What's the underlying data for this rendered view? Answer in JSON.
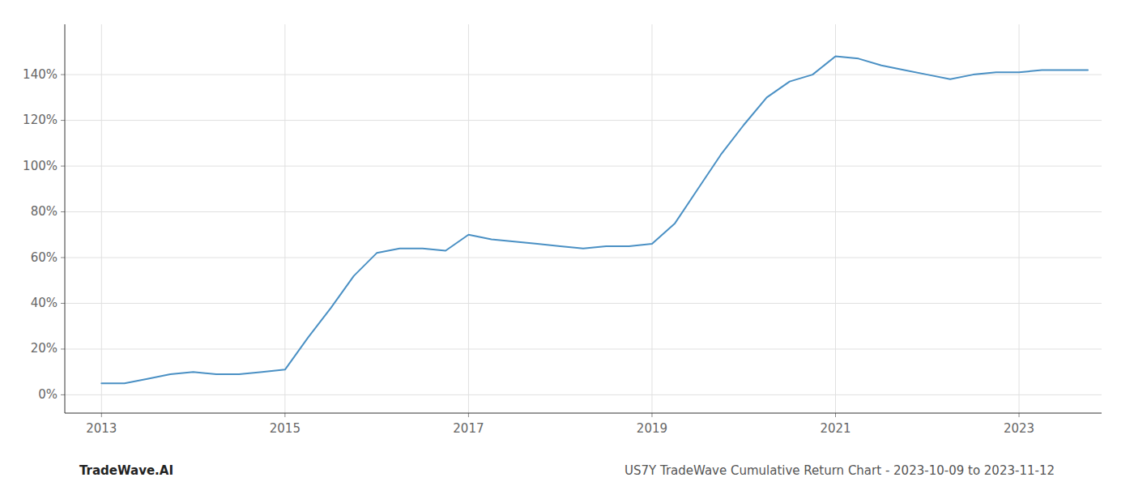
{
  "chart_data": {
    "type": "line",
    "annotations": [
      "TradeWave.AI",
      "US7Y TradeWave Cumulative Return Chart - 2023-10-09 to 2023-11-12"
    ],
    "x": [
      2013.0,
      2013.25,
      2013.5,
      2013.75,
      2014.0,
      2014.25,
      2014.5,
      2014.75,
      2015.0,
      2015.25,
      2015.5,
      2015.75,
      2016.0,
      2016.25,
      2016.5,
      2016.75,
      2017.0,
      2017.25,
      2017.5,
      2017.75,
      2018.0,
      2018.25,
      2018.5,
      2018.75,
      2019.0,
      2019.25,
      2019.5,
      2019.75,
      2020.0,
      2020.25,
      2020.5,
      2020.75,
      2021.0,
      2021.25,
      2021.5,
      2021.75,
      2022.0,
      2022.25,
      2022.5,
      2022.75,
      2023.0,
      2023.25,
      2023.5,
      2023.75
    ],
    "values": [
      5,
      5,
      7,
      9,
      10,
      9,
      9,
      10,
      11,
      25,
      38,
      52,
      62,
      64,
      64,
      63,
      70,
      68,
      67,
      66,
      65,
      64,
      65,
      65,
      66,
      75,
      90,
      105,
      118,
      130,
      137,
      140,
      148,
      147,
      144,
      142,
      140,
      138,
      140,
      141,
      141,
      142,
      142,
      142
    ],
    "color": "#4a90c4",
    "xlim": [
      2012.6,
      2023.9
    ],
    "ylim": [
      -8,
      162
    ],
    "xticks": [
      2013,
      2015,
      2017,
      2019,
      2021,
      2023
    ],
    "yticks": [
      {
        "value": 0,
        "label": "0%"
      },
      {
        "value": 20,
        "label": "20%"
      },
      {
        "value": 40,
        "label": "40%"
      },
      {
        "value": 60,
        "label": "60%"
      },
      {
        "value": 80,
        "label": "80%"
      },
      {
        "value": 100,
        "label": "100%"
      },
      {
        "value": 120,
        "label": "120%"
      },
      {
        "value": 140,
        "label": "140%"
      }
    ],
    "grid": true
  }
}
